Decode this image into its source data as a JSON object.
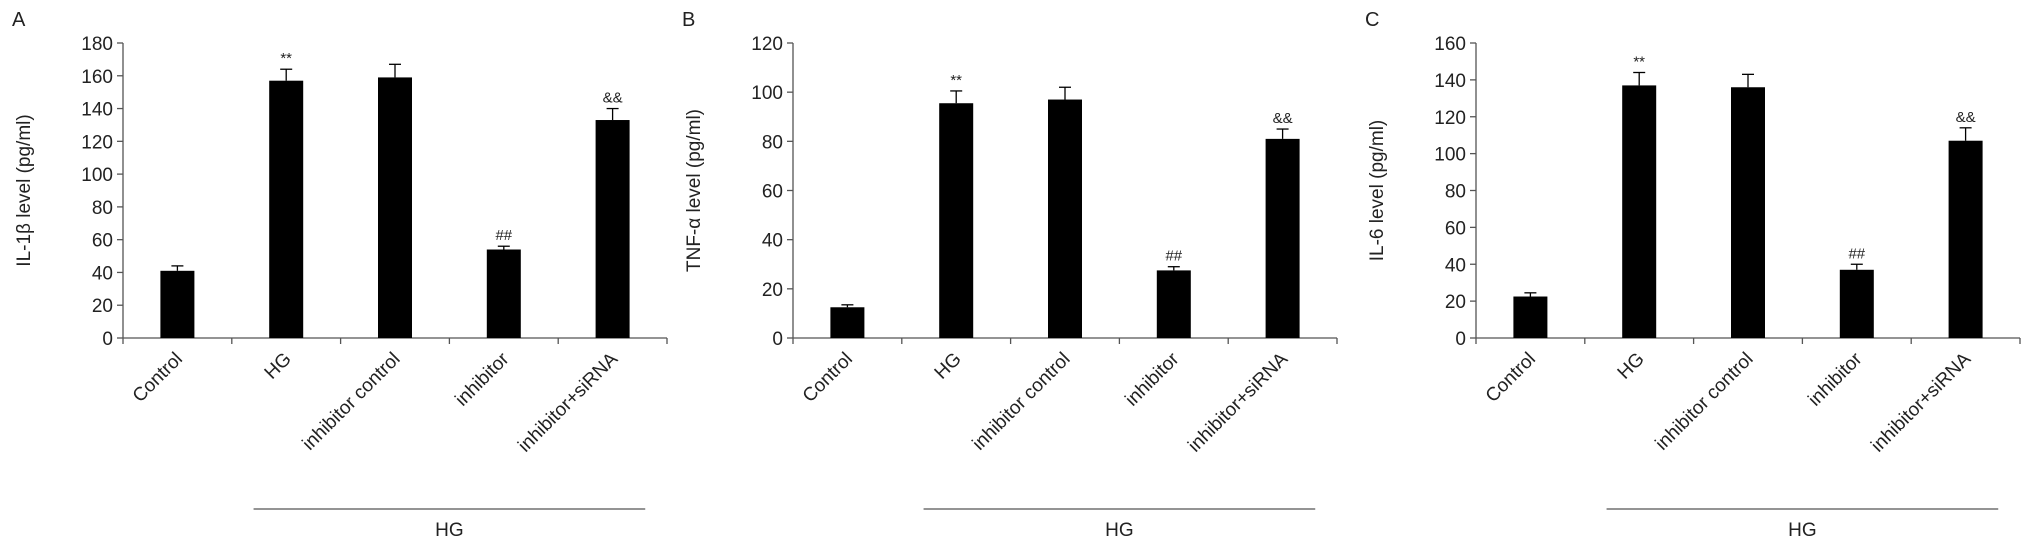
{
  "chart_data": [
    {
      "type": "bar",
      "panel_label": "A",
      "y_label": "IL-1β level (pg/ml)",
      "categories": [
        "Control",
        "HG",
        "inhibitor control",
        "inhibitor",
        "inhibitor+siRNA"
      ],
      "values": [
        41,
        157,
        159,
        54,
        133
      ],
      "errors": [
        3,
        7,
        8,
        2,
        7
      ],
      "annotations": [
        null,
        "**",
        null,
        "##",
        "&&"
      ],
      "group_label": "HG",
      "color": "#000000",
      "ylim": [
        0,
        180
      ],
      "yticks": [
        0,
        20,
        40,
        60,
        80,
        100,
        120,
        140,
        160,
        180
      ]
    },
    {
      "type": "bar",
      "panel_label": "B",
      "y_label": "TNF-α level (pg/ml)",
      "categories": [
        "Control",
        "HG",
        "inhibitor control",
        "inhibitor",
        "inhibitor+siRNA"
      ],
      "values": [
        12.5,
        95.5,
        97,
        27.5,
        81
      ],
      "errors": [
        1,
        5,
        5,
        1.5,
        4
      ],
      "annotations": [
        null,
        "**",
        null,
        "##",
        "&&"
      ],
      "group_label": "HG",
      "color": "#000000",
      "ylim": [
        0,
        120
      ],
      "yticks": [
        0,
        20,
        40,
        60,
        80,
        100,
        120
      ]
    },
    {
      "type": "bar",
      "panel_label": "C",
      "y_label": "IL-6 level (pg/ml)",
      "categories": [
        "Control",
        "HG",
        "inhibitor control",
        "inhibitor",
        "inhibitor+siRNA"
      ],
      "values": [
        22.5,
        137,
        136,
        37,
        107
      ],
      "errors": [
        2,
        7,
        7,
        3,
        7
      ],
      "annotations": [
        null,
        "**",
        null,
        "##",
        "&&"
      ],
      "group_label": "HG",
      "color": "#000000",
      "ylim": [
        0,
        160
      ],
      "yticks": [
        0,
        20,
        40,
        60,
        80,
        100,
        120,
        140,
        160
      ]
    }
  ]
}
